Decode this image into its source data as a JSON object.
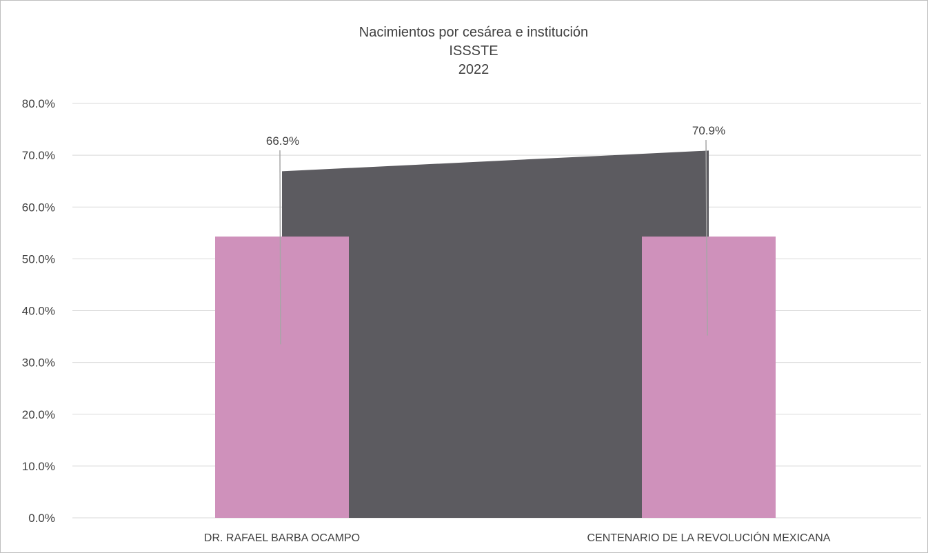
{
  "chart_data": {
    "type": "bar",
    "title_lines": [
      "Nacimientos por cesárea e institución",
      "ISSSTE",
      "2022"
    ],
    "categories": [
      "DR. RAFAEL BARBA OCAMPO",
      "CENTENARIO DE LA REVOLUCIÓN MEXICANA"
    ],
    "series": [
      {
        "type": "area",
        "values": [
          66.9,
          70.9
        ],
        "data_labels": [
          "66.9%",
          "70.9%"
        ],
        "color": "#5c5b60"
      },
      {
        "type": "bar",
        "values": [
          54.3,
          54.3
        ],
        "color": "#cf91bb"
      }
    ],
    "ylim": [
      0,
      80
    ],
    "yticks": [
      0,
      10,
      20,
      30,
      40,
      50,
      60,
      70,
      80
    ],
    "ytick_labels": [
      "0.0%",
      "10.0%",
      "20.0%",
      "30.0%",
      "40.0%",
      "50.0%",
      "60.0%",
      "70.0%",
      "80.0%"
    ],
    "grid": true,
    "legend": "none",
    "colors": {
      "gridline": "#d9d9d9",
      "text": "#404040",
      "leader": "#a6a6a6",
      "frame": "#bfbfbf"
    }
  }
}
